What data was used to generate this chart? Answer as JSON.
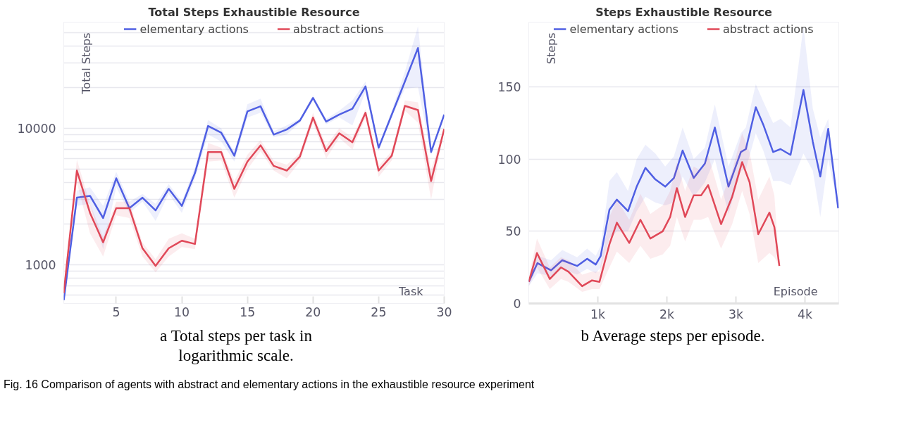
{
  "chart_data": [
    {
      "type": "line",
      "title": "Total Steps Exhaustible Resource",
      "xlabel": "Task",
      "ylabel": "Total Steps",
      "log": "y",
      "grid": "y",
      "legend": "top",
      "marker": "none",
      "line_style": "solid",
      "x": [
        1,
        2,
        3,
        4,
        5,
        6,
        7,
        8,
        9,
        10,
        11,
        12,
        13,
        14,
        15,
        16,
        17,
        18,
        19,
        20,
        21,
        22,
        23,
        24,
        25,
        26,
        27,
        28,
        29,
        30
      ],
      "xlim": [
        1,
        30
      ],
      "xticks": [
        5,
        10,
        15,
        20,
        25,
        30
      ],
      "ylim": [
        520,
        60000
      ],
      "yticks": [
        {
          "value": 600,
          "label": null
        },
        {
          "value": 700,
          "label": null
        },
        {
          "value": 800,
          "label": null
        },
        {
          "value": 900,
          "label": null
        },
        1000,
        {
          "value": 2000,
          "label": null
        },
        {
          "value": 3000,
          "label": null
        },
        {
          "value": 4000,
          "label": null
        },
        {
          "value": 5000,
          "label": null
        },
        {
          "value": 6000,
          "label": null
        },
        {
          "value": 7000,
          "label": null
        },
        {
          "value": 8000,
          "label": null
        },
        {
          "value": 9000,
          "label": null
        },
        10000,
        {
          "value": 20000,
          "label": null
        },
        {
          "value": 30000,
          "label": null
        },
        {
          "value": 40000,
          "label": null
        },
        {
          "value": 50000,
          "label": null
        }
      ],
      "series": [
        {
          "name": "elementary actions",
          "color": "#4f5fe3",
          "values": [
            550,
            3100,
            3200,
            2200,
            4300,
            2600,
            3100,
            2500,
            3600,
            2700,
            4700,
            10400,
            9300,
            6300,
            13300,
            14500,
            9000,
            9800,
            11400,
            16700,
            11200,
            12600,
            13900,
            20300,
            7200,
            12600,
            22000,
            38800,
            6700,
            12600
          ],
          "lower": [
            530,
            2700,
            2800,
            1300,
            3700,
            2400,
            2900,
            2100,
            3300,
            2400,
            4300,
            9000,
            8000,
            5700,
            12000,
            13000,
            8600,
            9000,
            11000,
            16000,
            10700,
            12000,
            10500,
            18500,
            6800,
            12000,
            19500,
            20000,
            6400,
            12600
          ],
          "upper": [
            570,
            3500,
            3700,
            2700,
            4800,
            2900,
            3300,
            2800,
            3900,
            2900,
            5200,
            11500,
            10000,
            6700,
            15000,
            16500,
            9500,
            10500,
            11800,
            17500,
            11700,
            13500,
            16000,
            22000,
            7500,
            13500,
            26000,
            56000,
            7000,
            12600
          ]
        },
        {
          "name": "abstract actions",
          "color": "#e04858",
          "values": [
            620,
            4900,
            2400,
            1460,
            2600,
            2600,
            1320,
            980,
            1320,
            1500,
            1420,
            6700,
            6700,
            3600,
            5700,
            7500,
            5300,
            4900,
            6200,
            12000,
            6800,
            9200,
            7900,
            13000,
            4900,
            6300,
            14600,
            13600,
            4100,
            9900
          ],
          "lower": [
            610,
            4000,
            1700,
            1150,
            2300,
            2200,
            1150,
            880,
            1150,
            1350,
            1300,
            5700,
            5800,
            3100,
            5000,
            6800,
            4900,
            4300,
            5700,
            11000,
            6000,
            8500,
            7000,
            12000,
            4400,
            5800,
            13500,
            11000,
            3000,
            9900
          ],
          "upper": [
            630,
            5900,
            2800,
            1600,
            2900,
            2900,
            1450,
            1100,
            1550,
            1700,
            1550,
            7800,
            7200,
            4100,
            6400,
            8200,
            5800,
            5400,
            6600,
            13000,
            7500,
            10000,
            8600,
            13800,
            5300,
            6800,
            16000,
            15500,
            5000,
            9900
          ]
        }
      ],
      "annotations": [
        "a Total steps per task in logarithmic scale.",
        "Fig. 16 Comparison of agents with abstract and elementary actions in the exhaustible resource experiment"
      ]
    },
    {
      "type": "line",
      "title": "Steps Exhaustible Resource",
      "xlabel": "Episode",
      "ylabel": "Steps",
      "grid": "y",
      "legend": "top",
      "marker": "none",
      "line_style": "solid",
      "xlim": [
        0,
        4490
      ],
      "xticks": [
        {
          "value": 1000,
          "label": "1k"
        },
        {
          "value": 2000,
          "label": "2k"
        },
        {
          "value": 3000,
          "label": "3k"
        },
        {
          "value": 4000,
          "label": "4k"
        }
      ],
      "ylim": [
        0,
        195
      ],
      "yticks": [
        0,
        50,
        100,
        150
      ],
      "series": [
        {
          "name": "elementary actions",
          "color": "#4f5fe3",
          "x": [
            0,
            126,
            323,
            485,
            700,
            845,
            970,
            1042,
            1168,
            1276,
            1437,
            1563,
            1689,
            1833,
            1976,
            2102,
            2228,
            2389,
            2551,
            2695,
            2893,
            3072,
            3144,
            3288,
            3396,
            3539,
            3647,
            3791,
            3978,
            4114,
            4222,
            4337,
            4481
          ],
          "values": [
            15,
            28,
            23,
            30,
            26,
            31,
            27,
            33,
            65,
            72,
            64,
            81,
            94,
            86,
            81,
            87,
            106,
            87,
            97,
            122,
            81,
            105,
            107,
            136,
            124,
            105,
            107,
            103,
            148,
            112,
            88,
            121,
            66
          ],
          "lower": [
            12,
            21,
            19,
            24,
            20,
            24,
            21,
            25,
            45,
            50,
            50,
            64,
            74,
            70,
            68,
            70,
            88,
            74,
            84,
            100,
            62,
            92,
            93,
            118,
            106,
            85,
            85,
            82,
            104,
            92,
            60,
            100,
            66
          ],
          "upper": [
            17,
            33,
            30,
            37,
            32,
            38,
            33,
            40,
            85,
            91,
            78,
            100,
            110,
            104,
            95,
            102,
            122,
            100,
            108,
            138,
            95,
            118,
            122,
            152,
            140,
            125,
            128,
            122,
            192,
            135,
            115,
            128,
            66
          ]
        },
        {
          "name": "abstract actions",
          "color": "#e04858",
          "x": [
            0,
            119,
            305,
            467,
            575,
            773,
            916,
            1024,
            1168,
            1276,
            1455,
            1617,
            1761,
            1940,
            2048,
            2145,
            2264,
            2389,
            2497,
            2598,
            2785,
            2946,
            3090,
            3198,
            3324,
            3485,
            3557,
            3629
          ],
          "values": [
            15,
            35,
            17,
            25,
            22,
            12,
            16,
            15,
            41,
            56,
            42,
            58,
            45,
            50,
            60,
            80,
            60,
            75,
            75,
            82,
            55,
            74,
            98,
            84,
            48,
            63,
            53,
            26
          ],
          "lower": [
            12,
            25,
            10,
            17,
            15,
            8,
            10,
            10,
            25,
            36,
            28,
            40,
            31,
            34,
            40,
            60,
            43,
            58,
            58,
            60,
            38,
            55,
            78,
            62,
            28,
            35,
            32,
            26
          ],
          "upper": [
            18,
            45,
            25,
            32,
            30,
            20,
            22,
            22,
            60,
            72,
            58,
            76,
            62,
            68,
            78,
            98,
            78,
            95,
            92,
            103,
            72,
            92,
            118,
            105,
            72,
            88,
            75,
            26
          ]
        }
      ],
      "annotations": [
        "b Average steps per episode."
      ]
    }
  ]
}
